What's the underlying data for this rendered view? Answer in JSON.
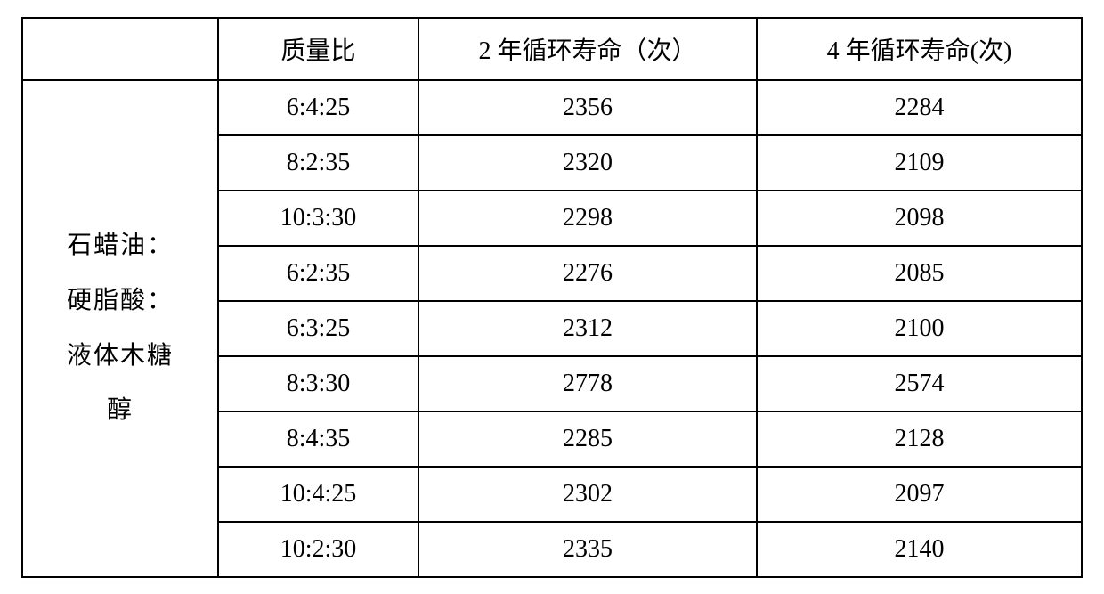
{
  "table": {
    "headers": {
      "material": "",
      "ratio": "质量比",
      "life2": "2 年循环寿命（次）",
      "life4": "4 年循环寿命(次)"
    },
    "rowHeader": "石蜡油：\n硬脂酸：\n液体木糖\n醇",
    "rows": [
      {
        "ratio": "6:4:25",
        "life2": "2356",
        "life4": "2284"
      },
      {
        "ratio": "8:2:35",
        "life2": "2320",
        "life4": "2109"
      },
      {
        "ratio": "10:3:30",
        "life2": "2298",
        "life4": "2098"
      },
      {
        "ratio": "6:2:35",
        "life2": "2276",
        "life4": "2085"
      },
      {
        "ratio": "6:3:25",
        "life2": "2312",
        "life4": "2100"
      },
      {
        "ratio": "8:3:30",
        "life2": "2778",
        "life4": "2574"
      },
      {
        "ratio": "8:4:35",
        "life2": "2285",
        "life4": "2128"
      },
      {
        "ratio": "10:4:25",
        "life2": "2302",
        "life4": "2097"
      },
      {
        "ratio": "10:2:30",
        "life2": "2335",
        "life4": "2140"
      }
    ],
    "styling": {
      "borderColor": "#000000",
      "borderWidth": 2,
      "backgroundColor": "#ffffff",
      "fontSize": 28,
      "fontFamily": "SimSun",
      "cellPadding": 14,
      "colWidths": {
        "material": 220,
        "ratio": 225,
        "life2": 380,
        "life4": 365
      }
    }
  }
}
